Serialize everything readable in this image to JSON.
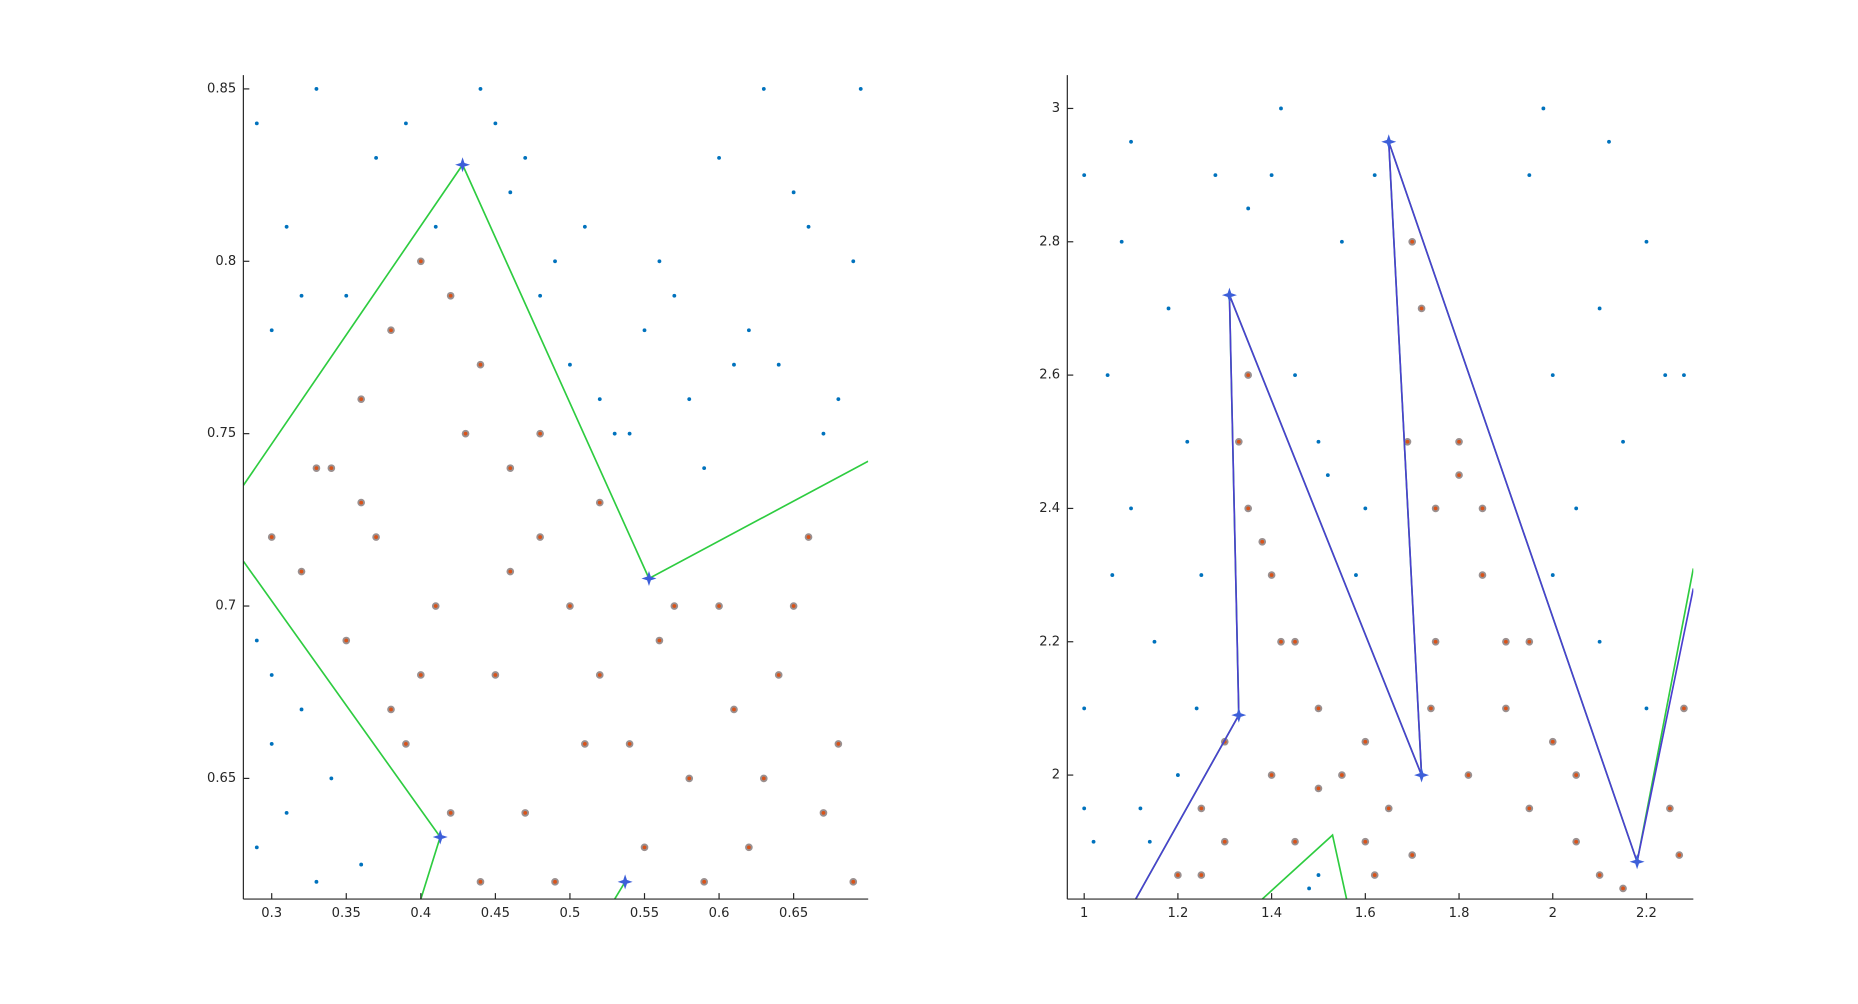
{
  "chart_data": [
    {
      "type": "scatter",
      "xlim": [
        0.281,
        0.7
      ],
      "ylim": [
        0.615,
        0.854
      ],
      "xticks": [
        0.3,
        0.35,
        0.4,
        0.45,
        0.5,
        0.55,
        0.6,
        0.65
      ],
      "yticks": [
        0.65,
        0.7,
        0.75,
        0.8,
        0.85
      ],
      "series": [
        {
          "marker": "dot",
          "color": "#0072bd",
          "x": [
            0.29,
            0.31,
            0.33,
            0.35,
            0.37,
            0.39,
            0.41,
            0.44,
            0.46,
            0.48,
            0.5,
            0.52,
            0.54,
            0.56,
            0.58,
            0.6,
            0.62,
            0.64,
            0.66,
            0.68,
            0.695,
            0.3,
            0.32,
            0.45,
            0.49,
            0.53,
            0.57,
            0.61,
            0.65,
            0.69,
            0.47,
            0.51,
            0.55,
            0.59,
            0.63,
            0.67,
            0.29,
            0.3,
            0.32,
            0.29,
            0.31,
            0.34,
            0.36,
            0.3,
            0.33
          ],
          "values": [
            0.84,
            0.81,
            0.85,
            0.79,
            0.83,
            0.84,
            0.81,
            0.85,
            0.82,
            0.79,
            0.77,
            0.76,
            0.75,
            0.8,
            0.76,
            0.83,
            0.78,
            0.77,
            0.81,
            0.76,
            0.85,
            0.78,
            0.79,
            0.84,
            0.8,
            0.75,
            0.79,
            0.77,
            0.82,
            0.8,
            0.83,
            0.81,
            0.78,
            0.74,
            0.85,
            0.75,
            0.69,
            0.66,
            0.67,
            0.63,
            0.64,
            0.65,
            0.625,
            0.68,
            0.62
          ]
        },
        {
          "marker": "ring",
          "color": "#d95319",
          "x": [
            0.3,
            0.32,
            0.34,
            0.36,
            0.38,
            0.4,
            0.42,
            0.44,
            0.46,
            0.48,
            0.5,
            0.52,
            0.54,
            0.56,
            0.58,
            0.6,
            0.62,
            0.64,
            0.66,
            0.68,
            0.69,
            0.35,
            0.37,
            0.39,
            0.41,
            0.43,
            0.45,
            0.47,
            0.49,
            0.51,
            0.55,
            0.57,
            0.59,
            0.61,
            0.63,
            0.65,
            0.67,
            0.42,
            0.44,
            0.38,
            0.4,
            0.46,
            0.48,
            0.52,
            0.36,
            0.33
          ],
          "values": [
            0.72,
            0.71,
            0.74,
            0.76,
            0.78,
            0.8,
            0.79,
            0.77,
            0.74,
            0.72,
            0.7,
            0.68,
            0.66,
            0.69,
            0.65,
            0.7,
            0.63,
            0.68,
            0.72,
            0.66,
            0.62,
            0.69,
            0.72,
            0.66,
            0.7,
            0.75,
            0.68,
            0.64,
            0.62,
            0.66,
            0.63,
            0.7,
            0.62,
            0.67,
            0.65,
            0.7,
            0.64,
            0.64,
            0.62,
            0.67,
            0.68,
            0.71,
            0.75,
            0.73,
            0.73,
            0.74
          ]
        },
        {
          "marker": "line",
          "color": "#2ecc40",
          "x": [
            0.281,
            0.428,
            0.553,
            0.7,
            null,
            0.281,
            0.413,
            0.4,
            null,
            0.53,
            0.537
          ],
          "values": [
            0.735,
            0.828,
            0.708,
            0.742,
            null,
            0.713,
            0.633,
            0.615,
            null,
            0.615,
            0.62
          ]
        },
        {
          "marker": "star",
          "color": "#3d5fd9",
          "x": [
            0.428,
            0.553,
            0.413,
            0.537
          ],
          "values": [
            0.828,
            0.708,
            0.633,
            0.62
          ]
        }
      ]
    },
    {
      "type": "scatter",
      "xlim": [
        0.964,
        2.3
      ],
      "ylim": [
        1.814,
        3.05
      ],
      "xticks": [
        1,
        1.2,
        1.4,
        1.6,
        1.8,
        2,
        2.2
      ],
      "yticks": [
        2,
        2.2,
        2.4,
        2.6,
        2.8,
        3
      ],
      "series": [
        {
          "marker": "dot",
          "color": "#0072bd",
          "x": [
            1.0,
            1.05,
            1.1,
            1.15,
            1.2,
            1.25,
            1.0,
            1.08,
            1.18,
            1.22,
            1.28,
            1.4,
            1.45,
            1.5,
            1.55,
            1.6,
            1.42,
            1.52,
            1.58,
            1.62,
            1.95,
            2.0,
            2.05,
            2.1,
            2.15,
            2.2,
            2.24,
            2.0,
            2.1,
            2.2,
            1.02,
            1.12,
            1.24,
            1.06,
            1.14,
            1.5,
            1.48,
            1.35,
            2.28,
            1.98,
            2.12,
            1.0,
            1.1
          ],
          "values": [
            2.9,
            2.6,
            2.4,
            2.2,
            2.0,
            2.3,
            2.1,
            2.8,
            2.7,
            2.5,
            2.9,
            2.9,
            2.6,
            2.5,
            2.8,
            2.4,
            3.0,
            2.45,
            2.3,
            2.9,
            2.9,
            2.6,
            2.4,
            2.2,
            2.5,
            2.8,
            2.6,
            2.3,
            2.7,
            2.1,
            1.9,
            1.95,
            2.1,
            2.3,
            1.9,
            1.85,
            1.83,
            2.85,
            2.6,
            3.0,
            2.95,
            1.95,
            2.95
          ]
        },
        {
          "marker": "ring",
          "color": "#d95319",
          "x": [
            1.2,
            1.25,
            1.3,
            1.35,
            1.4,
            1.45,
            1.5,
            1.55,
            1.6,
            1.65,
            1.74,
            1.75,
            1.8,
            1.85,
            1.9,
            1.95,
            2.0,
            2.05,
            2.1,
            2.15,
            2.25,
            2.28,
            1.33,
            1.35,
            1.38,
            1.42,
            1.69,
            1.72,
            1.75,
            1.7,
            1.8,
            1.85,
            1.9,
            1.4,
            1.45,
            1.5,
            1.6,
            1.62,
            1.7,
            1.82,
            1.95,
            2.05,
            1.3,
            1.25,
            2.27
          ],
          "values": [
            1.85,
            1.95,
            2.05,
            2.4,
            2.3,
            2.2,
            2.1,
            2.0,
            1.9,
            1.95,
            2.1,
            2.4,
            2.5,
            2.3,
            2.1,
            1.95,
            2.05,
            1.9,
            1.85,
            1.83,
            1.95,
            2.1,
            2.5,
            2.6,
            2.35,
            2.2,
            2.5,
            2.7,
            2.2,
            2.8,
            2.45,
            2.4,
            2.2,
            2.0,
            1.9,
            1.98,
            2.05,
            1.85,
            1.88,
            2.0,
            2.2,
            2.0,
            1.9,
            1.85,
            1.88
          ]
        },
        {
          "marker": "line",
          "color": "#2ecc40",
          "x": [
            1.11,
            1.33,
            1.31,
            1.72,
            1.65,
            2.18,
            2.3,
            null,
            1.38,
            1.53,
            1.56
          ],
          "values": [
            1.814,
            2.09,
            2.72,
            2.0,
            2.95,
            1.87,
            2.31,
            null,
            1.814,
            1.91,
            1.814
          ]
        },
        {
          "marker": "line",
          "color": "#4a3fd0",
          "x": [
            1.11,
            1.33,
            1.31,
            1.72,
            1.65,
            2.18,
            2.3
          ],
          "values": [
            1.814,
            2.09,
            2.72,
            2.0,
            2.95,
            1.87,
            2.28
          ]
        },
        {
          "marker": "star",
          "color": "#3d5fd9",
          "x": [
            1.33,
            1.31,
            1.72,
            1.65,
            2.18
          ],
          "values": [
            2.09,
            2.72,
            2.0,
            2.95,
            1.87
          ]
        }
      ]
    }
  ]
}
